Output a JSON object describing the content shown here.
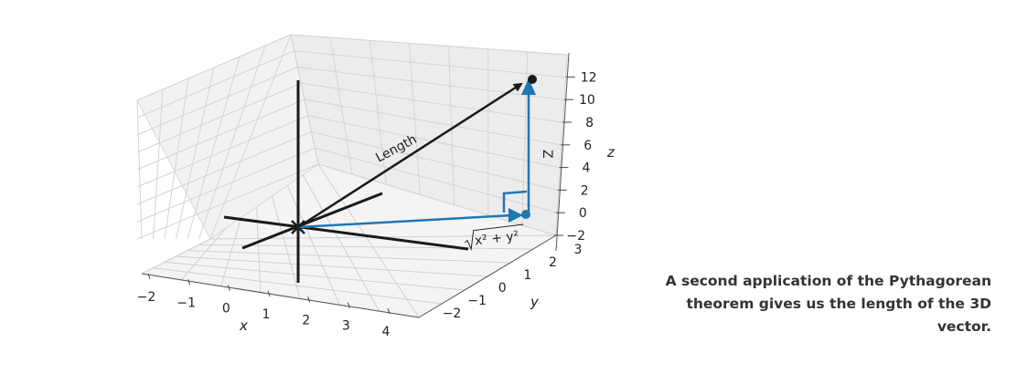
{
  "caption": "A second application of the Pythagorean theorem gives us the length of the 3D vector.",
  "axes": {
    "x": {
      "label": "x",
      "ticks": [
        "−2",
        "−1",
        "0",
        "1",
        "2",
        "3",
        "4"
      ]
    },
    "y": {
      "label": "y",
      "ticks": [
        "−2",
        "−1",
        "0",
        "1",
        "2",
        "3"
      ]
    },
    "z": {
      "label": "z",
      "ticks": [
        "−2",
        "0",
        "2",
        "4",
        "6",
        "8",
        "10",
        "12"
      ]
    }
  },
  "annotations": {
    "length": "Length",
    "z_leg": "Z",
    "sqrt_expr": "x² + y²"
  },
  "colors": {
    "black": "#1a1a1a",
    "blue": "#1f77b4",
    "grid": "#cccccc",
    "pane": "#f2f2f2"
  }
}
